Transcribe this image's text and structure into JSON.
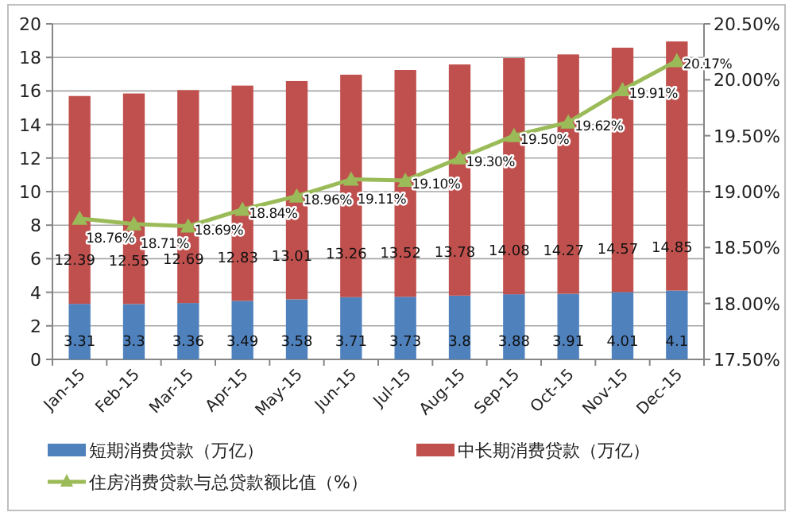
{
  "chart_data": {
    "type": "bar",
    "stacked": true,
    "categories": [
      "Jan-15",
      "Feb-15",
      "Mar-15",
      "Apr-15",
      "May-15",
      "Jun-15",
      "Jul-15",
      "Aug-15",
      "Sep-15",
      "Oct-15",
      "Nov-15",
      "Dec-15"
    ],
    "series": [
      {
        "name": "短期消费贷款（万亿）",
        "color": "#4f81bd",
        "values": [
          3.31,
          3.3,
          3.36,
          3.49,
          3.58,
          3.71,
          3.73,
          3.8,
          3.88,
          3.91,
          4.01,
          4.1
        ],
        "value_labels": [
          "3.31",
          "3.3",
          "3.36",
          "3.49",
          "3.58",
          "3.71",
          "3.73",
          "3.8",
          "3.88",
          "3.91",
          "4.01",
          "4.1"
        ]
      },
      {
        "name": "中长期消费贷款（万亿）",
        "color": "#c0504d",
        "values": [
          12.39,
          12.55,
          12.69,
          12.83,
          13.01,
          13.26,
          13.52,
          13.78,
          14.08,
          14.27,
          14.57,
          14.85
        ],
        "value_labels": [
          "12.39",
          "12.55",
          "12.69",
          "12.83",
          "13.01",
          "13.26",
          "13.52",
          "13.78",
          "14.08",
          "14.27",
          "14.57",
          "14.85"
        ]
      },
      {
        "name": "住房消费贷款与总贷款额比值（%）",
        "type": "line",
        "axis": "y2",
        "color": "#9bbb59",
        "marker": "triangle",
        "values": [
          18.76,
          18.71,
          18.69,
          18.84,
          18.96,
          19.11,
          19.1,
          19.3,
          19.5,
          19.62,
          19.91,
          20.17
        ],
        "value_labels": [
          "18.76%",
          "18.71%",
          "18.69%",
          "18.84%",
          "18.96%",
          "19.11%",
          "19.10%",
          "19.30%",
          "19.50%",
          "19.62%",
          "19.91%",
          "20.17%"
        ]
      }
    ],
    "ylim": [
      0,
      20
    ],
    "yticks": [
      0,
      2,
      4,
      6,
      8,
      10,
      12,
      14,
      16,
      18,
      20
    ],
    "y2lim": [
      17.5,
      20.5
    ],
    "y2ticks": [
      {
        "value": 17.5,
        "label": "17.50%"
      },
      {
        "value": 18,
        "label": "18.00%"
      },
      {
        "value": 18.5,
        "label": "18.50%"
      },
      {
        "value": 19,
        "label": "19.00%"
      },
      {
        "value": 19.5,
        "label": "19.50%"
      },
      {
        "value": 20,
        "label": "20.00%"
      },
      {
        "value": 20.5,
        "label": "20.50%"
      }
    ],
    "grid": "y",
    "legend": "bottom"
  }
}
